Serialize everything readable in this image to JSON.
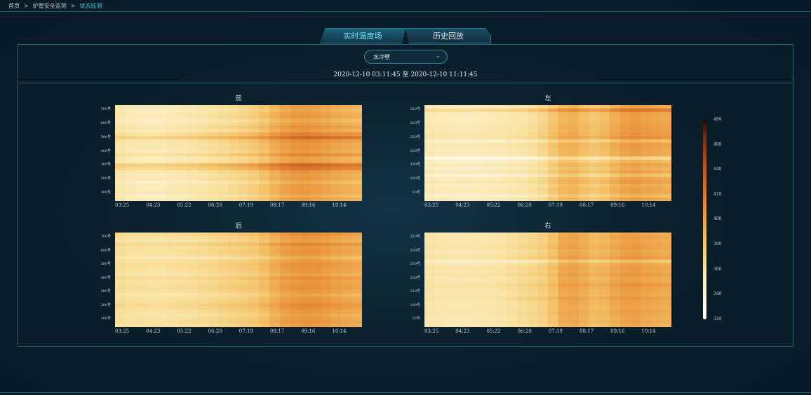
{
  "breadcrumb": {
    "items": [
      "首页",
      "炉管安全监测",
      "状态监测"
    ],
    "separator": ">"
  },
  "tabs": [
    {
      "label": "实时温度场",
      "active": true
    },
    {
      "label": "历史回放",
      "active": false
    }
  ],
  "selector": {
    "value": "水冷壁"
  },
  "time_range": {
    "start": "2020-12-10 03:11:45",
    "to": "至",
    "end": "2020-12-10 11:11:45"
  },
  "colors": {
    "accent": "#3fc6d6",
    "border": "#2a6276",
    "background": "#0b1f2c"
  },
  "chart_data": [
    {
      "type": "heatmap",
      "title": "前",
      "x_ticks": [
        "03:25",
        "04:23",
        "05:22",
        "06:20",
        "07:19",
        "08:17",
        "09:16",
        "10:14"
      ],
      "y_ticks": [
        "700号",
        "600号",
        "500号",
        "400号",
        "300号",
        "200号",
        "100号"
      ],
      "column_profile": [
        355,
        352,
        350,
        350,
        350,
        352,
        353,
        355,
        357,
        360,
        362,
        365,
        368,
        372,
        378,
        386,
        393,
        397,
        398,
        396,
        393,
        390,
        388,
        386
      ],
      "row_offsets": [
        0,
        -4,
        0,
        2,
        -6,
        0,
        6,
        0,
        14,
        28,
        8,
        3,
        4,
        0,
        12,
        -2,
        0,
        30,
        22,
        4,
        0,
        2,
        -8,
        0,
        0,
        2,
        -6,
        0
      ]
    },
    {
      "type": "heatmap",
      "title": "左",
      "x_ticks": [
        "03:25",
        "04:23",
        "05:22",
        "06:20",
        "07:19",
        "08:17",
        "09:16",
        "10:14"
      ],
      "y_ticks": [
        "350号",
        "300号",
        "250号",
        "200号",
        "150号",
        "100号",
        "50号"
      ],
      "column_profile": [
        352,
        350,
        350,
        349,
        349,
        350,
        351,
        352,
        354,
        356,
        360,
        366,
        376,
        384,
        386,
        380,
        376,
        380,
        388,
        394,
        396,
        394,
        392,
        390
      ],
      "row_offsets": [
        0,
        22,
        2,
        0,
        0,
        2,
        4,
        4,
        6,
        10,
        -10,
        4,
        2,
        0,
        0,
        -26,
        -8,
        0,
        -6,
        0,
        -14,
        0,
        4,
        -4,
        0,
        0,
        -10,
        0
      ]
    },
    {
      "type": "heatmap",
      "title": "后",
      "x_ticks": [
        "03:25",
        "04:23",
        "05:22",
        "06:20",
        "07:19",
        "08:17",
        "09:16",
        "10:14"
      ],
      "y_ticks": [
        "700号",
        "600号",
        "500号",
        "400号",
        "300号",
        "200号",
        "100号"
      ],
      "column_profile": [
        362,
        360,
        360,
        359,
        359,
        360,
        361,
        362,
        364,
        366,
        368,
        370,
        372,
        375,
        380,
        388,
        395,
        398,
        400,
        399,
        397,
        394,
        392,
        390
      ],
      "row_offsets": [
        6,
        0,
        -4,
        8,
        0,
        2,
        0,
        -10,
        0,
        4,
        2,
        0,
        -4,
        6,
        0,
        2,
        4,
        0,
        -6,
        0,
        2,
        8,
        4,
        0,
        -4,
        0,
        2,
        -2
      ]
    },
    {
      "type": "heatmap",
      "title": "右",
      "x_ticks": [
        "03:25",
        "04:23",
        "05:22",
        "06:20",
        "07:19",
        "08:17",
        "09:16",
        "10:14"
      ],
      "y_ticks": [
        "350号",
        "300号",
        "250号",
        "200号",
        "150号",
        "100号",
        "50号"
      ],
      "column_profile": [
        356,
        354,
        353,
        353,
        353,
        354,
        355,
        357,
        360,
        363,
        366,
        370,
        378,
        390,
        392,
        388,
        382,
        384,
        390,
        394,
        395,
        392,
        390,
        388
      ],
      "row_offsets": [
        0,
        2,
        0,
        2,
        4,
        0,
        2,
        6,
        -14,
        0,
        4,
        2,
        6,
        0,
        2,
        8,
        4,
        2,
        0,
        6,
        2,
        0,
        0,
        2,
        0,
        -2,
        0,
        -4
      ]
    }
  ],
  "colorbar": {
    "min": 320,
    "max": 480,
    "ticks": [
      "480",
      "460",
      "440",
      "420",
      "400",
      "380",
      "360",
      "340",
      "320"
    ]
  }
}
